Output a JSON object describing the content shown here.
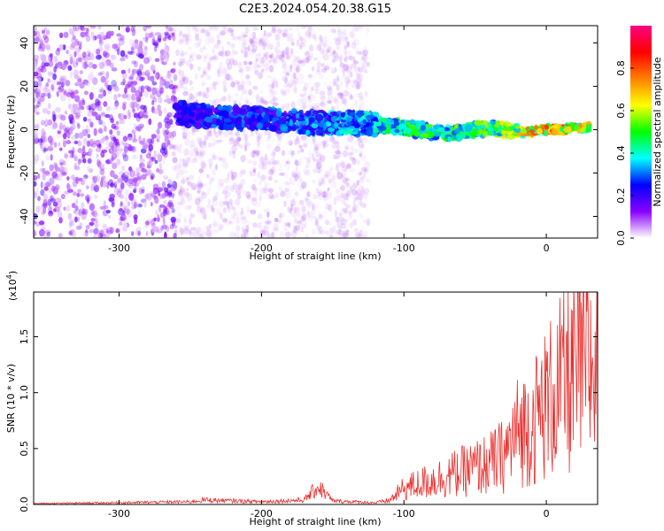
{
  "title": "C2E3.2024.054.20.38.G15",
  "chart_data": [
    {
      "type": "heatmap",
      "xlabel": "Height of straight line (km)",
      "ylabel": "Frequency (Hz)",
      "xlim": [
        -360,
        36
      ],
      "ylim": [
        -50,
        48
      ],
      "x_ticks": [
        -300,
        -200,
        -100,
        0
      ],
      "y_ticks": [
        -40,
        -20,
        0,
        20,
        40
      ],
      "colorbar": {
        "label": "Normalized spectral amplitude",
        "range": [
          0,
          1
        ],
        "ticks": [
          "0.0",
          "0.2",
          "0.4",
          "0.6",
          "0.8"
        ],
        "colors": [
          "#ffffff",
          "#8a00ff",
          "#0000ff",
          "#00ffff",
          "#00ff00",
          "#ffff00",
          "#ff8000",
          "#ff0000",
          "#ff0080"
        ]
      },
      "signal_track": [
        {
          "x": -260,
          "freq": 8,
          "amp": 0.25
        },
        {
          "x": -240,
          "freq": 6,
          "amp": 0.3
        },
        {
          "x": -200,
          "freq": 5,
          "amp": 0.3
        },
        {
          "x": -160,
          "freq": 3,
          "amp": 0.35
        },
        {
          "x": -130,
          "freq": 3,
          "amp": 0.4
        },
        {
          "x": -100,
          "freq": 1,
          "amp": 0.5
        },
        {
          "x": -70,
          "freq": -2,
          "amp": 0.5
        },
        {
          "x": -40,
          "freq": 1,
          "amp": 0.55
        },
        {
          "x": -20,
          "freq": -1,
          "amp": 0.65
        },
        {
          "x": 0,
          "freq": 0,
          "amp": 0.85
        },
        {
          "x": 30,
          "freq": 1,
          "amp": 0.7
        }
      ]
    },
    {
      "type": "line",
      "xlabel": "Height of straight line (km)",
      "ylabel": "SNR (10 * v/v)",
      "yscale_label": "(x10",
      "yscale_exp": "4",
      "xlim": [
        -360,
        36
      ],
      "ylim": [
        0,
        1.9
      ],
      "x_ticks": [
        -300,
        -200,
        -100,
        0
      ],
      "y_ticks": [
        "0.0",
        "0.5",
        "1.0",
        "1.5"
      ],
      "color": "#e8312f",
      "series": [
        {
          "x": [
            -360,
            -300,
            -250,
            -240,
            -200,
            -170,
            -160,
            -155,
            -150,
            -120,
            -110,
            -100,
            -90,
            -80,
            -70,
            -60,
            -50,
            -40,
            -30,
            -20,
            -10,
            0,
            10,
            20,
            30,
            36
          ],
          "y": [
            0.01,
            0.02,
            0.03,
            0.05,
            0.03,
            0.05,
            0.2,
            0.12,
            0.04,
            0.02,
            0.05,
            0.2,
            0.25,
            0.3,
            0.35,
            0.4,
            0.45,
            0.5,
            0.6,
            0.9,
            1.0,
            1.25,
            1.45,
            1.6,
            1.7,
            1.75
          ]
        }
      ]
    }
  ]
}
